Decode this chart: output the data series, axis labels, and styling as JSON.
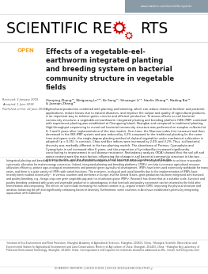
{
  "bg_color": "#ffffff",
  "header_bar_color": "#8a9ba8",
  "header_url": "www.nature.com/scientificreports",
  "open_label": "OPEN",
  "open_color": "#f5a623",
  "title": "Effects of a vegetable-eel-\nearthworm integrated planting\nand breeding system on bacterial\ncommunity structure in vegetable\nfields",
  "title_color": "#1a1a1a",
  "authors": "Xianping Zhang¹², Weiguang Le¹²³, Ke Song¹¹, Shuangxi Li¹², Hanlin Zhang¹², Nading Bai¹²\n& Juanqin Zhang¹²",
  "received": "Received: 3 January 2018",
  "accepted": "Accepted: 1 June 2018",
  "published": "Published online: 22 June 2018",
  "abstract": "Agricultural production combined with planting and breeding, which can reduce chemical fertilizer and pesticide applications, reduce losses due to natural disasters, and improve the output and quality of agricultural products, is an important way to achieve green, circular and efficient production. To assess effects on soil bacterial community structure, a vegetable-eel-earthworm integrated planting and breeding platform (VEE-IPBP) combined with experiment planting was established at Chongming Island, Shanghai and compared to traditional planting. High-throughput sequencing to reveal soil bacterial community structure was performed on samples collected at 0, 3 and 6 years after implementation of the two models. Over time, the Shannon index first increased and then decreased in the VEE-IPBP system and was reduced by 3.2% compared to the traditional planting (in the same time and space scale, the single-degree planting method of dryland vegetables under mechanical cultivation is adopted) (p < 0.05). In contrast, Chao and Ace indices were increased by 2.4% and 3.2%. Thus, soil bacterial diversity was markedly different in the two planting models. The abundance of Proteus, Cyanophyta and Cyanophyta in soil increased after 6 years, and the proportion of Lysinibacillus increased significantly, contributing to improvement in soil disease resistance. Redundancy analysis (RDA) showed that the soil pH and water content were the main factors influencing the change in soil bacterial community structure in the two planting models, and the dominant species of soil bacteria were Cynobacter and Bacillus.",
  "intro_text": "Integrated planting and breeding is a circular eco-agricultural production approach that takes full advantage of ecological principles to achieve reasonable systematic allocation for matter-energy conversion. Indeed, integrated planting and breeding platforms (IPBPs) can help to increase agricultural resource utilization efficiency, protect agro-ecological environments and promote green agricultural development. IPBPs have been used extensively worldwide for many years, and there is a wide variety of IPBPs with varied functions. The economic, ecological and social benefits due to the implementation of IPBPs have recently been studied extensively¹². In various countries and territories in Europe and the United States, grain production has been integrated with livestock and poultry breeding, e.g., forage-crop-corn grain-vegetable-pig and rice-mushroom-goose IPBPs¹. Research has shown that at a suitable scale, livestock and poultry breeding combined with grain and vegetable production is advantageous in that livestock and poultry excrement can be returned to the field after fermentation and composting. The effects on soil include increasing the nutrient content (e.g., organic matter (OM)), improving the physical structure and aeration, balancing the pH and significantly enhancing bacterial diversity. Furthermore, some countries in Asia have established systems by integrating aquaculture with traditional",
  "footer_affiliations": "¹Institute of Eco-Environment and Plant Protection, Shanghai Academy of Agricultural Sciences, Shanghai, 201403, China. ²Shanghai Scientific Observation and Experimental Station for Agricultural Environment and Land Conservation, Ministry of Agriculture of China, Shanghai, 201403, China. ³Shanghai Key Laboratory of Protected Horticultural Technology, Shanghai, 201403, China. Correspondence and requests for materials should be addressed to W.L. (email: leel525@sina.com)",
  "footer_doi": "SCIENTIFIC REPORTS | (2018) 8:9501 | DOI:10.1038/s41598-018-27935-y",
  "gear_color": "#cc0000",
  "line_color": "#cccccc"
}
